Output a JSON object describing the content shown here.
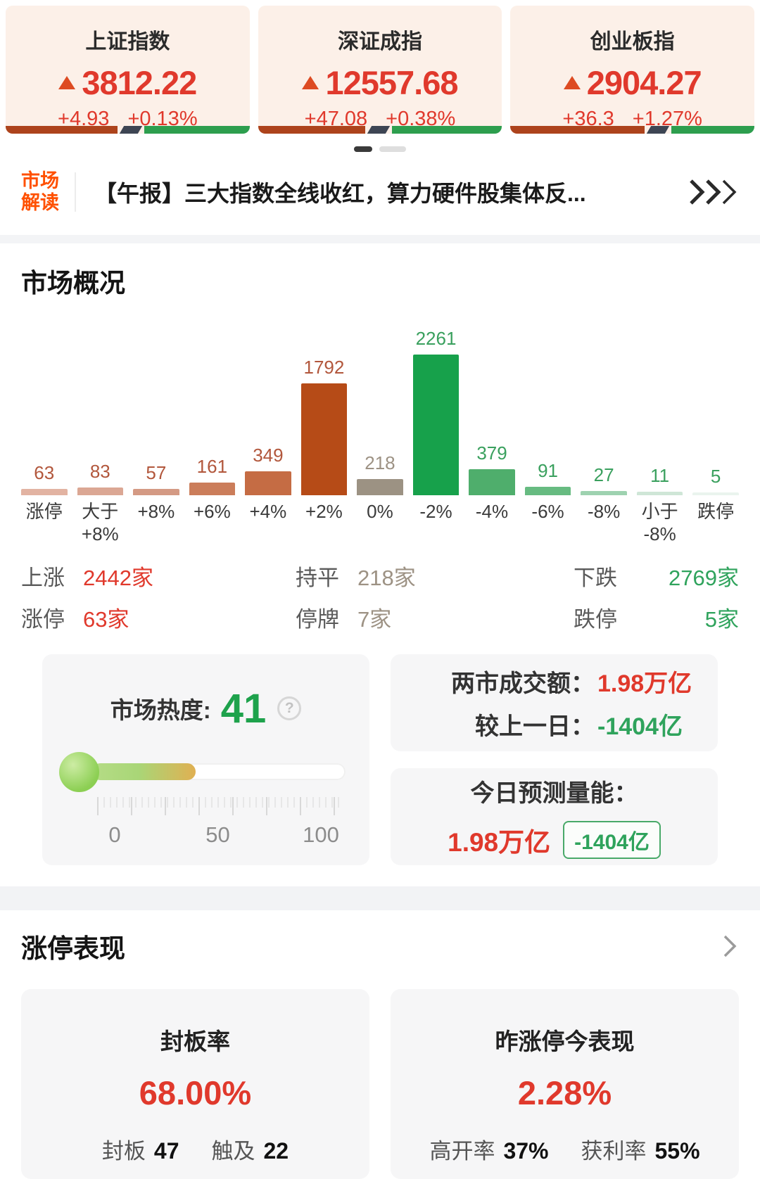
{
  "colors": {
    "accent_red": "#e0392c",
    "accent_green": "#2fa35c",
    "flat_gray": "#9d9284",
    "label_up": "#b2573c",
    "label_down": "#3aa05e",
    "strip_red": "#ad431c",
    "strip_dark": "#3d4553",
    "strip_green": "#2d9e4e",
    "ticker_orange": "#ff5000",
    "heat_green": "#1ea24c"
  },
  "index_cards": [
    {
      "name": "上证指数",
      "value": "3812.22",
      "change": "+4.93",
      "change_pct": "+0.13%",
      "up_ratio": 0.46
    },
    {
      "name": "深证成指",
      "value": "12557.68",
      "change": "+47.08",
      "change_pct": "+0.38%",
      "up_ratio": 0.44
    },
    {
      "name": "创业板指",
      "value": "2904.27",
      "change": "+36.3",
      "change_pct": "+1.27%",
      "up_ratio": 0.55
    }
  ],
  "carousel": {
    "pages": 2,
    "active_page": 1
  },
  "ticker": {
    "label": "市场\n解读",
    "headline": "【午报】三大指数全线收红，算力硬件股集体反..."
  },
  "market_overview": {
    "title": "市场概况",
    "stats": [
      {
        "label": "上涨",
        "value": "2442家",
        "tone": "red"
      },
      {
        "label": "持平",
        "value": "218家",
        "tone": "gray"
      },
      {
        "label": "下跌",
        "value": "2769家",
        "tone": "green"
      },
      {
        "label": "涨停",
        "value": "63家",
        "tone": "red"
      },
      {
        "label": "停牌",
        "value": "7家",
        "tone": "gray"
      },
      {
        "label": "跌停",
        "value": "5家",
        "tone": "green"
      }
    ]
  },
  "chart_data": {
    "type": "bar",
    "title": "市场概况 涨跌分布",
    "categories": [
      "涨停",
      "大于\n+8%",
      "+8%",
      "+6%",
      "+4%",
      "+2%",
      "0%",
      "-2%",
      "-4%",
      "-6%",
      "-8%",
      "小于\n-8%",
      "跌停"
    ],
    "values": [
      63,
      83,
      57,
      161,
      349,
      1792,
      218,
      2261,
      379,
      91,
      27,
      11,
      5
    ],
    "bar_colors": [
      "#e2b3a2",
      "#dba794",
      "#d49a84",
      "#cb7d5a",
      "#c56c44",
      "#b64b17",
      "#9c9283",
      "#17a14b",
      "#4fae6c",
      "#67bb81",
      "#9ed2b0",
      "#cfe6d7",
      "#eaf4ee"
    ],
    "tones": [
      "up",
      "up",
      "up",
      "up",
      "up",
      "up",
      "flat",
      "down",
      "down",
      "down",
      "down",
      "down",
      "down"
    ],
    "ylim": [
      0,
      2261
    ],
    "grid": false,
    "value_labels": true,
    "legend": "none"
  },
  "heat_card": {
    "label": "市场热度:",
    "value": 41,
    "min": 0,
    "max": 100,
    "scale_labels": [
      "0",
      "50",
      "100"
    ],
    "help_icon": "?"
  },
  "turnover_card": {
    "rows": [
      {
        "label": "两市成交额：",
        "value": "1.98万亿",
        "tone": "red"
      },
      {
        "label": "较上一日：",
        "value": "-1404亿",
        "tone": "green"
      }
    ]
  },
  "forecast_card": {
    "label": "今日预测量能：",
    "value": "1.98万亿",
    "badge": "-1404亿"
  },
  "limitup_section": {
    "title": "涨停表现",
    "cards": [
      {
        "title": "封板率",
        "value": "68.00%",
        "metrics": [
          {
            "label": "封板",
            "value": "47"
          },
          {
            "label": "触及",
            "value": "22"
          }
        ]
      },
      {
        "title": "昨涨停今表现",
        "value": "2.28%",
        "metrics": [
          {
            "label": "高开率",
            "value": "37%"
          },
          {
            "label": "获利率",
            "value": "55%"
          }
        ]
      }
    ]
  }
}
